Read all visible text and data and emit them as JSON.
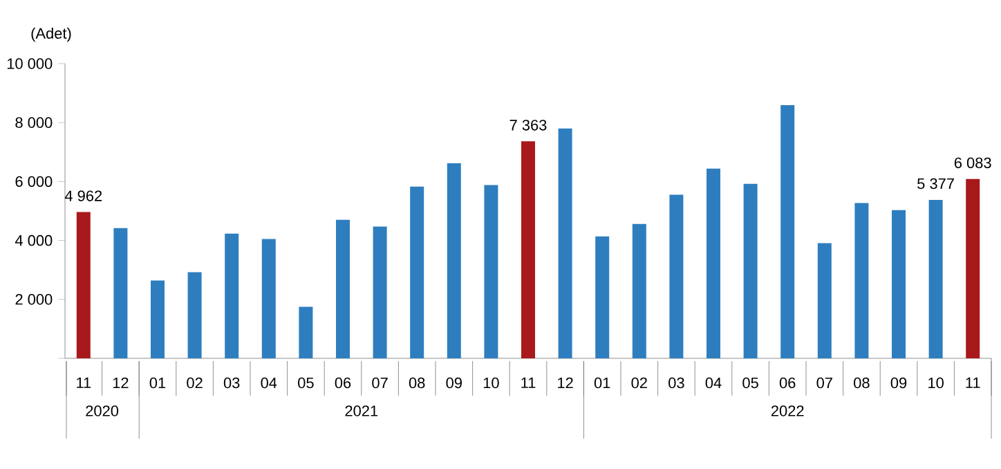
{
  "chart_data": {
    "type": "bar",
    "ylabel": "(Adet)",
    "categories": [
      "11",
      "12",
      "01",
      "02",
      "03",
      "04",
      "05",
      "06",
      "07",
      "08",
      "09",
      "10",
      "11",
      "12",
      "01",
      "02",
      "03",
      "04",
      "05",
      "06",
      "07",
      "08",
      "09",
      "10",
      "11"
    ],
    "values": [
      4962,
      4420,
      2640,
      2920,
      4230,
      4050,
      1750,
      4700,
      4470,
      5830,
      6620,
      5880,
      7363,
      7800,
      4140,
      4560,
      5550,
      6440,
      5920,
      8590,
      3910,
      5270,
      5030,
      5377,
      6083
    ],
    "colors": [
      "#a8191c",
      "#2e7ebf",
      "#2e7ebf",
      "#2e7ebf",
      "#2e7ebf",
      "#2e7ebf",
      "#2e7ebf",
      "#2e7ebf",
      "#2e7ebf",
      "#2e7ebf",
      "#2e7ebf",
      "#2e7ebf",
      "#a8191c",
      "#2e7ebf",
      "#2e7ebf",
      "#2e7ebf",
      "#2e7ebf",
      "#2e7ebf",
      "#2e7ebf",
      "#2e7ebf",
      "#2e7ebf",
      "#2e7ebf",
      "#2e7ebf",
      "#2e7ebf",
      "#a8191c"
    ],
    "value_labels": [
      "4 962",
      null,
      null,
      null,
      null,
      null,
      null,
      null,
      null,
      null,
      null,
      null,
      "7 363",
      null,
      null,
      null,
      null,
      null,
      null,
      null,
      null,
      null,
      null,
      "5 377",
      "6 083"
    ],
    "ylim": [
      0,
      10000
    ],
    "yticks": [
      {
        "value": 0,
        "label": null
      },
      {
        "value": 2000,
        "label": "2 000"
      },
      {
        "value": 4000,
        "label": "4 000"
      },
      {
        "value": 6000,
        "label": "6 000"
      },
      {
        "value": 8000,
        "label": "8 000"
      },
      {
        "value": 10000,
        "label": "10 000"
      }
    ],
    "annotations": [
      "2020",
      "2021",
      "2022"
    ]
  }
}
